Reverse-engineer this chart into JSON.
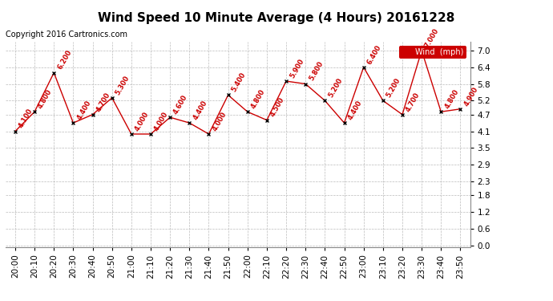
{
  "title": "Wind Speed 10 Minute Average (4 Hours) 20161228",
  "copyright": "Copyright 2016 Cartronics.com",
  "legend_label": "Wind  (mph)",
  "x_labels": [
    "20:00",
    "20:10",
    "20:20",
    "20:30",
    "20:40",
    "20:50",
    "21:00",
    "21:10",
    "21:20",
    "21:30",
    "21:40",
    "21:50",
    "22:00",
    "22:10",
    "22:20",
    "22:30",
    "22:40",
    "22:50",
    "23:00",
    "23:10",
    "23:20",
    "23:30",
    "23:40",
    "23:50"
  ],
  "y_values": [
    4.1,
    4.8,
    6.2,
    4.4,
    4.7,
    5.3,
    4.0,
    4.0,
    4.6,
    4.4,
    4.0,
    5.4,
    4.8,
    4.5,
    5.9,
    5.8,
    5.2,
    4.4,
    6.4,
    5.2,
    4.7,
    7.0,
    4.8,
    4.9
  ],
  "line_color": "#cc0000",
  "marker_color": "#000000",
  "bg_color": "#ffffff",
  "grid_color": "#bbbbbb",
  "y_ticks": [
    0.0,
    0.6,
    1.2,
    1.8,
    2.3,
    2.9,
    3.5,
    4.1,
    4.7,
    5.2,
    5.8,
    6.4,
    7.0
  ],
  "ylim": [
    -0.05,
    7.3
  ],
  "annotation_color": "#cc0000",
  "title_fontsize": 11,
  "copyright_fontsize": 7,
  "annotation_fontsize": 6,
  "legend_bg": "#cc0000",
  "legend_text_color": "#ffffff",
  "tick_fontsize": 7.5
}
